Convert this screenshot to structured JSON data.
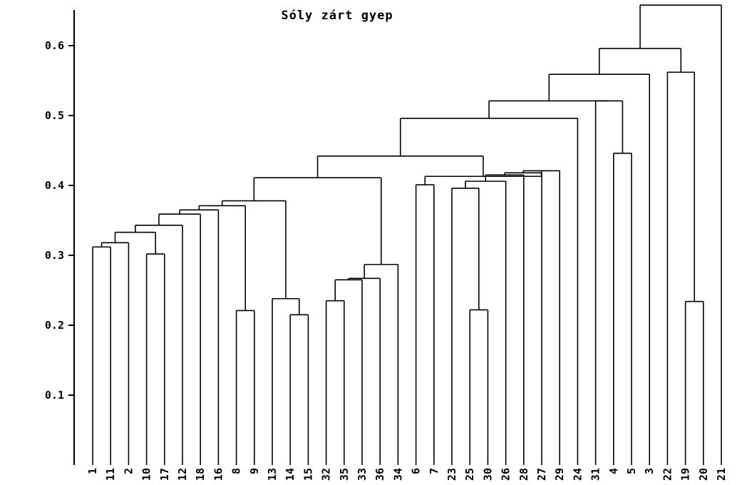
{
  "chart_data": {
    "type": "dendrogram",
    "title": "Sóly zárt gyep",
    "xlabel": "",
    "ylabel": "",
    "ylim": [
      0,
      0.66
    ],
    "yticks": [
      {
        "value": 0.1,
        "label": "0.1"
      },
      {
        "value": 0.2,
        "label": "0.2"
      },
      {
        "value": 0.3,
        "label": "0.3"
      },
      {
        "value": 0.4,
        "label": "0.4"
      },
      {
        "value": 0.5,
        "label": "0.5"
      },
      {
        "value": 0.6,
        "label": "0.6"
      }
    ],
    "leaves": [
      "1",
      "11",
      "2",
      "10",
      "17",
      "12",
      "18",
      "16",
      "8",
      "9",
      "13",
      "14",
      "15",
      "32",
      "35",
      "33",
      "36",
      "34",
      "6",
      "7",
      "23",
      "25",
      "30",
      "26",
      "28",
      "27",
      "29",
      "24",
      "31",
      "4",
      "5",
      "3",
      "22",
      "19",
      "20",
      "21"
    ],
    "merges": [
      {
        "left": 0,
        "right": 1,
        "height": 0.312
      },
      {
        "left": -1,
        "right": 2,
        "height": 0.318
      },
      {
        "left": 3,
        "right": 4,
        "height": 0.302
      },
      {
        "left": -2,
        "right": -3,
        "height": 0.333
      },
      {
        "left": -4,
        "right": 5,
        "height": 0.343
      },
      {
        "left": -5,
        "right": 6,
        "height": 0.359
      },
      {
        "left": -6,
        "right": 7,
        "height": 0.365
      },
      {
        "left": 8,
        "right": 9,
        "height": 0.221
      },
      {
        "left": -7,
        "right": -8,
        "height": 0.371
      },
      {
        "left": 11,
        "right": 12,
        "height": 0.215
      },
      {
        "left": 10,
        "right": -10,
        "height": 0.238
      },
      {
        "left": -9,
        "right": -11,
        "height": 0.378
      },
      {
        "left": 13,
        "right": 14,
        "height": 0.235
      },
      {
        "left": -13,
        "right": 15,
        "height": 0.265
      },
      {
        "left": -14,
        "right": 16,
        "height": 0.267
      },
      {
        "left": -15,
        "right": 17,
        "height": 0.287
      },
      {
        "left": -12,
        "right": -16,
        "height": 0.411
      },
      {
        "left": 18,
        "right": 19,
        "height": 0.401
      },
      {
        "left": 21,
        "right": 22,
        "height": 0.222
      },
      {
        "left": 20,
        "right": -19,
        "height": 0.396
      },
      {
        "left": -20,
        "right": 23,
        "height": 0.406
      },
      {
        "left": -21,
        "right": 24,
        "height": 0.415
      },
      {
        "left": -22,
        "right": 25,
        "height": 0.418
      },
      {
        "left": -23,
        "right": 26,
        "height": 0.421
      },
      {
        "left": -18,
        "right": -24,
        "height": 0.413
      },
      {
        "left": -17,
        "right": -25,
        "height": 0.442
      },
      {
        "left": -26,
        "right": 27,
        "height": 0.496
      },
      {
        "left": 29,
        "right": 30,
        "height": 0.446
      },
      {
        "left": 28,
        "right": -28,
        "height": 0.521
      },
      {
        "left": -27,
        "right": -29,
        "height": 0.521
      },
      {
        "left": -30,
        "right": 31,
        "height": 0.559
      },
      {
        "left": 33,
        "right": 34,
        "height": 0.234
      },
      {
        "left": 32,
        "right": -32,
        "height": 0.562
      },
      {
        "left": -31,
        "right": -33,
        "height": 0.596
      },
      {
        "left": -34,
        "right": 35,
        "height": 0.658
      }
    ]
  }
}
